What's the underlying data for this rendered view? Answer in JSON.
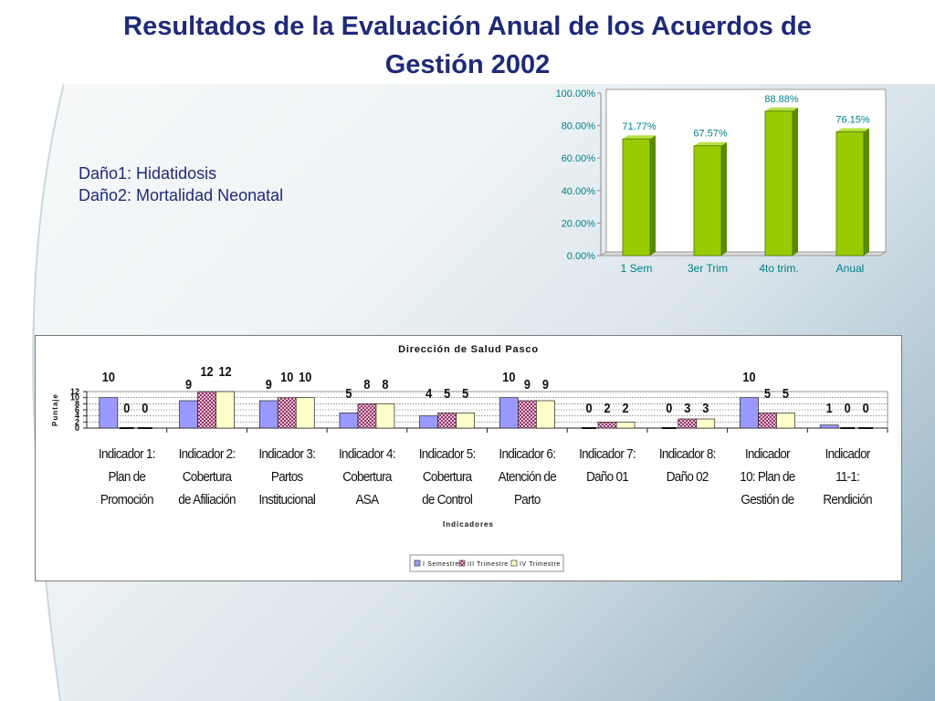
{
  "page": {
    "title_line1": "Resultados de la Evaluación Anual de los Acuerdos de",
    "title_line2": "Gestión 2002",
    "note_line1": "Daño1: Hidatidosis",
    "note_line2": "Daño2: Mortalidad Neonatal"
  },
  "colors": {
    "title": "#1f2a78",
    "bar_green": "#99cc00",
    "series1": "#9999ff",
    "series2": "#993366",
    "series3": "#ffffcc",
    "teal_text": "#00808a"
  },
  "chart_data": [
    {
      "type": "bar",
      "categories": [
        "1 Sem",
        "3er Trim",
        "4to trim.",
        "Anual"
      ],
      "values": [
        71.77,
        67.57,
        88.88,
        76.15
      ],
      "data_labels": [
        "71.77%",
        "67.57%",
        "88.88%",
        "76.15%"
      ],
      "ytick_labels": [
        "100.00%",
        "80.00%",
        "60.00%",
        "40.00%",
        "20.00%",
        "0.00%"
      ],
      "ylim": [
        0,
        100
      ],
      "title": "",
      "xlabel": "",
      "ylabel": "",
      "grid": false
    },
    {
      "type": "bar",
      "title": "Dirección de Salud Pasco",
      "xlabel": "Indicadores",
      "ylabel": "Puntaje",
      "ylim": [
        0,
        12
      ],
      "ytick_labels": [
        "12",
        "10",
        "8",
        "6",
        "4",
        "2",
        "0"
      ],
      "categories": [
        [
          "Indicador 1:",
          "Plan de",
          "Promoción"
        ],
        [
          "Indicador 2:",
          "Cobertura",
          "de Afiliación"
        ],
        [
          "Indicador 3:",
          "Partos",
          "Institucional"
        ],
        [
          "Indicador 4:",
          "Cobertura",
          "ASA"
        ],
        [
          "Indicador 5:",
          "Cobertura",
          "de Control"
        ],
        [
          "Indicador 6:",
          "Atención de",
          "Parto"
        ],
        [
          "Indicador 7:",
          "Daño 01"
        ],
        [
          "Indicador 8:",
          "Daño 02"
        ],
        [
          "Indicador",
          "10: Plan de",
          "Gestión de"
        ],
        [
          "Indicador",
          "11-1:",
          "Rendición"
        ]
      ],
      "series": [
        {
          "name": "I Semestre",
          "values": [
            10,
            9,
            9,
            5,
            4,
            10,
            0,
            0,
            10,
            1
          ]
        },
        {
          "name": "III Trimestre",
          "values": [
            0,
            12,
            10,
            8,
            5,
            9,
            2,
            3,
            5,
            0
          ]
        },
        {
          "name": "IV Trimestre",
          "values": [
            0,
            12,
            10,
            8,
            5,
            9,
            2,
            3,
            5,
            0
          ]
        }
      ],
      "legend": "bottom",
      "grid": true
    }
  ]
}
